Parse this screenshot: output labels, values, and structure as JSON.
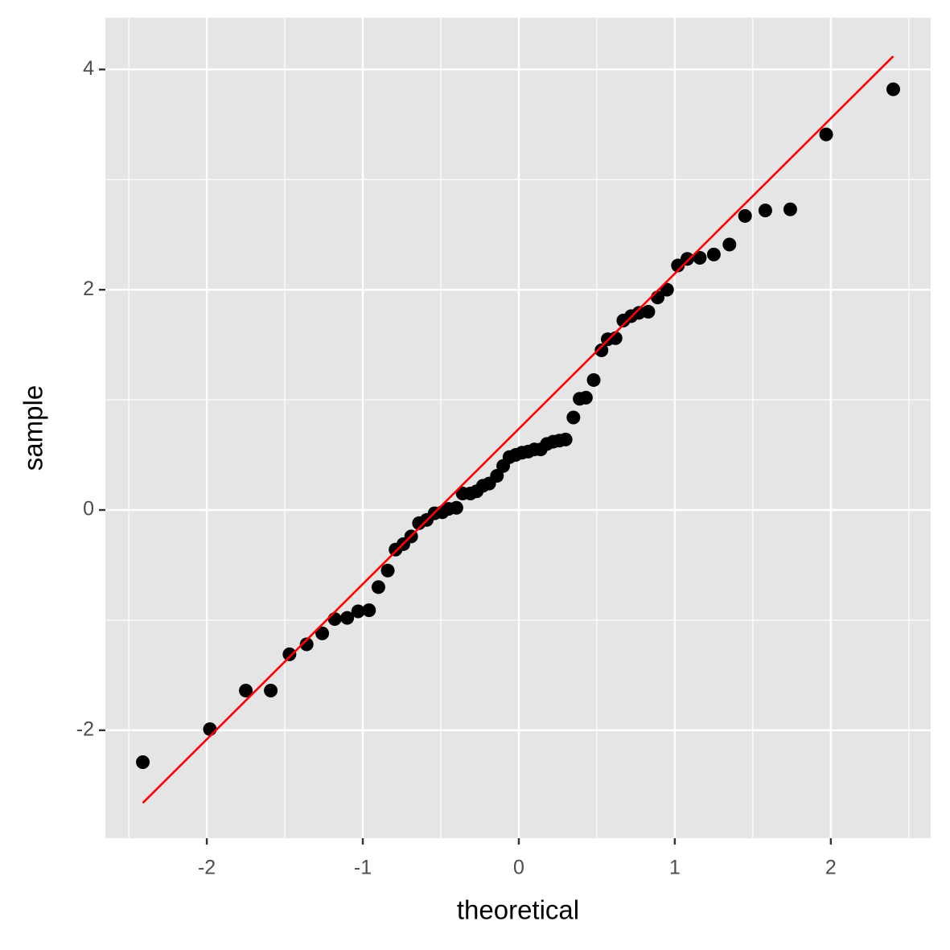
{
  "chart_data": {
    "type": "scatter",
    "xlabel": "theoretical",
    "ylabel": "sample",
    "xlim": [
      -2.65,
      2.64
    ],
    "ylim": [
      -2.98,
      4.47
    ],
    "xticks": [
      -2,
      -1,
      0,
      1,
      2
    ],
    "yticks": [
      -2,
      0,
      2,
      4
    ],
    "grid": true,
    "color": "#000000",
    "x": [
      -2.41,
      -1.98,
      -1.75,
      -1.59,
      -1.47,
      -1.36,
      -1.26,
      -1.18,
      -1.1,
      -1.03,
      -0.96,
      -0.9,
      -0.84,
      -0.79,
      -0.74,
      -0.69,
      -0.64,
      -0.59,
      -0.54,
      -0.49,
      -0.45,
      -0.4,
      -0.36,
      -0.31,
      -0.27,
      -0.23,
      -0.19,
      -0.14,
      -0.1,
      -0.06,
      -0.02,
      0.02,
      0.06,
      0.1,
      0.14,
      0.18,
      0.22,
      0.26,
      0.3,
      0.35,
      0.39,
      0.43,
      0.48,
      0.53,
      0.57,
      0.62,
      0.67,
      0.72,
      0.77,
      0.83,
      0.89,
      0.95,
      1.02,
      1.08,
      1.16,
      1.25,
      1.35,
      1.45,
      1.58,
      1.74,
      1.97,
      2.4
    ],
    "values": [
      -2.29,
      -1.99,
      -1.64,
      -1.64,
      -1.31,
      -1.22,
      -1.12,
      -0.99,
      -0.98,
      -0.92,
      -0.91,
      -0.7,
      -0.55,
      -0.36,
      -0.31,
      -0.24,
      -0.12,
      -0.09,
      -0.03,
      -0.02,
      0.01,
      0.02,
      0.15,
      0.15,
      0.17,
      0.22,
      0.24,
      0.31,
      0.4,
      0.48,
      0.5,
      0.52,
      0.53,
      0.55,
      0.55,
      0.6,
      0.62,
      0.63,
      0.64,
      0.84,
      1.01,
      1.02,
      1.18,
      1.45,
      1.55,
      1.56,
      1.72,
      1.76,
      1.79,
      1.8,
      1.93,
      2.0,
      2.22,
      2.28,
      2.29,
      2.32,
      2.41,
      2.67,
      2.72,
      2.73,
      3.41,
      3.82
    ],
    "line": {
      "x": [
        -2.41,
        2.4
      ],
      "values": [
        -2.66,
        4.12
      ],
      "color": "#ff0000"
    }
  }
}
